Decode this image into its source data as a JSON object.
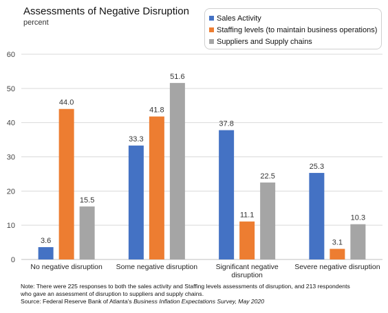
{
  "chart_data": {
    "type": "bar",
    "title": "Assessments of Negative Disruption",
    "subtitle": "percent",
    "categories": [
      [
        "No negative disruption"
      ],
      [
        "Some negative disruption"
      ],
      [
        "Significant negative",
        "disruption"
      ],
      [
        "Severe negative disruption"
      ]
    ],
    "series": [
      {
        "name": "Sales Activity",
        "color": "#4472C4",
        "values": [
          3.6,
          33.3,
          37.8,
          25.3
        ]
      },
      {
        "name": "Staffing levels (to maintain business operations)",
        "color": "#ED7D31",
        "values": [
          44.0,
          41.8,
          11.1,
          3.1
        ]
      },
      {
        "name": "Suppliers and Supply chains",
        "color": "#A5A5A5",
        "values": [
          15.5,
          51.6,
          22.5,
          10.3
        ]
      }
    ],
    "ylim": [
      0,
      60
    ],
    "yticks": [
      0,
      10,
      20,
      30,
      40,
      50,
      60
    ],
    "grid": true,
    "legend_position": "top-right"
  },
  "note": {
    "line1": "Note: There were 225 responses to both the sales activity and Staffing levels assessments of disruption, and 213 respondents",
    "line2": "who gave an assessment of disruption to suppliers and supply chains.",
    "source_prefix": "Source: Federal Reserve Bank of Atlanta's ",
    "source_italic": "Business Inflation Expectations Survey, May 2020"
  }
}
